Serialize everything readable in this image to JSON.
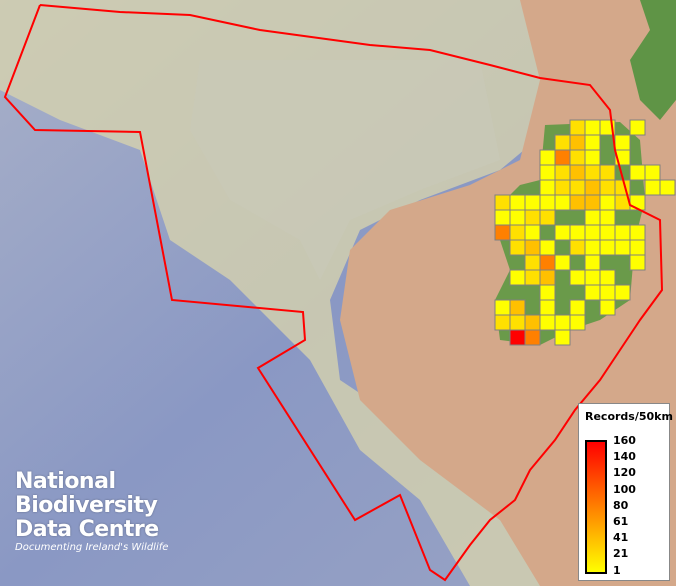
{
  "colors": {
    "boundary": "#ff0000",
    "cell_border": "#808080",
    "land": "#d4a88a",
    "ireland": "#6a9a4a",
    "ocean_deep": "#8c9cc8",
    "shelf": "#d8d4b0"
  },
  "legend": {
    "title": "Records/50km",
    "labels": [
      "160",
      "140",
      "120",
      "100",
      "80",
      "61",
      "41",
      "21",
      "1"
    ]
  },
  "logo": {
    "lines": [
      "National",
      "Biodiversity",
      "Data Centre"
    ],
    "tagline": "Documenting Ireland's Wildlife"
  },
  "grid": {
    "palette": {
      "Y": "#ffff00",
      "y": "#ffe000",
      "o": "#ffc000",
      "O": "#ff8000",
      "R": "#ff0000"
    },
    "rows": [
      ".....yYY.Y.",
      "....yoY.Y..",
      "...YOyY.Y..",
      "...Yyoyy YY",
      "...Yyyoyy YY",
      "yYYYYooYyY.",
      "YYyy..YY...",
      "OyY.YYYYYY.",
      ".yoY.yYYYY.",
      "..yOY.Y..Y.",
      ".Yyo.YYY...",
      "...Y..YYY..",
      "Yo.Y.Y.Y...",
      "yyoYYY.....",
      ".RO.Y......"
    ]
  }
}
